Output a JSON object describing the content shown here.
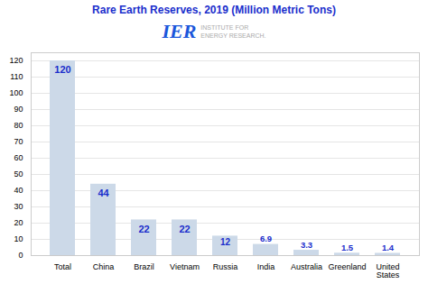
{
  "chart_data": {
    "type": "bar",
    "title": "Rare Earth Reserves, 2019 (Million Metric Tons)",
    "annotations": [
      "IER",
      "INSTITUTE FOR",
      "ENERGY RESEARCH."
    ],
    "categories": [
      "Total",
      "China",
      "Brazil",
      "Vietnam",
      "Russia",
      "India",
      "Australia",
      "Greenland",
      "United\nStates"
    ],
    "values": [
      120,
      44,
      22,
      22,
      12,
      6.9,
      3.3,
      1.5,
      1.4
    ],
    "color": "#ccd9e8",
    "ylim": [
      0,
      125
    ],
    "yticks": [
      0,
      10,
      20,
      30,
      40,
      50,
      60,
      70,
      80,
      90,
      100,
      110,
      120
    ],
    "grid": true,
    "data_labels": true
  }
}
